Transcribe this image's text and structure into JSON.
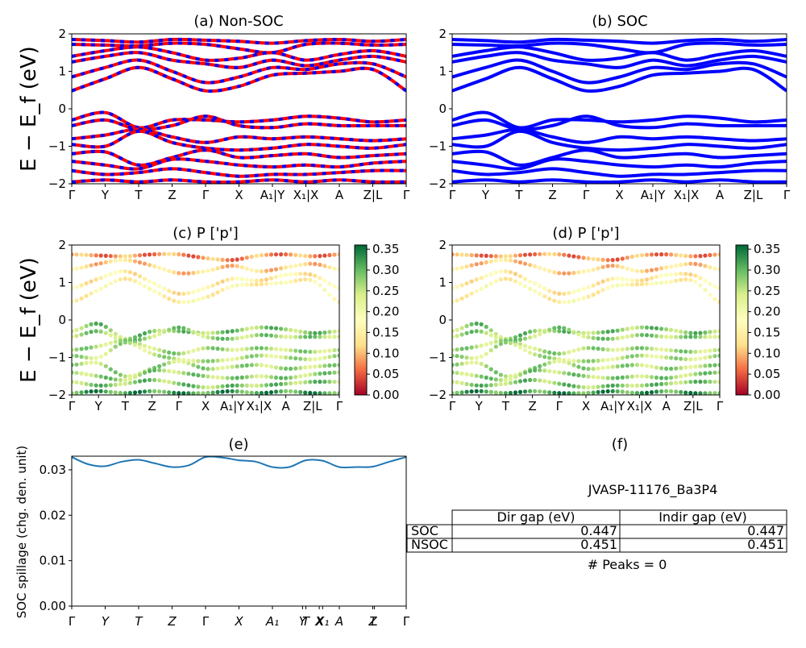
{
  "panels": {
    "a": {
      "title": "(a) Non-SOC",
      "ylabel": "E − E_f (eV)",
      "xticks": [
        "Γ",
        "Y",
        "T",
        "Z",
        "Γ",
        "X",
        "A1|Y",
        "X1|X",
        "A",
        "Z|L",
        "Γ"
      ],
      "yticks": [
        "2",
        "1",
        "0",
        "−1",
        "−2"
      ]
    },
    "b": {
      "title": "(b) SOC",
      "xticks": [
        "Γ",
        "Y",
        "T",
        "Z",
        "Γ",
        "X",
        "A1|Y",
        "X1|X",
        "A",
        "Z|L",
        "Γ"
      ],
      "yticks": [
        "2",
        "1",
        "0",
        "−1",
        "−2"
      ]
    },
    "c": {
      "title": "(c)  P ['p']",
      "ylabel": "E − E_f (eV)",
      "xticks": [
        "Γ",
        "Y",
        "T",
        "Z",
        "Γ",
        "X",
        "A1|Y",
        "X1|X",
        "A",
        "Z|L",
        "Γ"
      ],
      "yticks": [
        "2",
        "1",
        "0",
        "−1",
        "−2"
      ],
      "colorbar_ticks": [
        "0.35",
        "0.30",
        "0.25",
        "0.20",
        "0.15",
        "0.10",
        "0.05",
        "0.00"
      ]
    },
    "d": {
      "title": "(d) P ['p']",
      "xticks": [
        "Γ",
        "Y",
        "T",
        "Z",
        "Γ",
        "X",
        "A1|Y",
        "X1|X",
        "A",
        "Z|L",
        "Γ"
      ],
      "yticks": [
        "2",
        "1",
        "0",
        "−1",
        "−2"
      ],
      "colorbar_ticks": [
        "0.35",
        "0.30",
        "0.25",
        "0.20",
        "0.15",
        "0.10",
        "0.05",
        "0.00"
      ]
    },
    "e": {
      "title": "(e)",
      "ylabel": "SOC spillage (chg. den. unit)",
      "xticks": [
        "Γ",
        "Y",
        "T",
        "Z",
        "Γ",
        "X",
        "A1",
        "Y",
        "T",
        "X",
        "X1",
        "A",
        "Z",
        "L",
        "Γ"
      ],
      "yticks": [
        "0.03",
        "0.02",
        "0.01",
        "0.00"
      ]
    },
    "f": {
      "title": "(f)",
      "material": "JVASP-11176_Ba3P4",
      "table": {
        "headers": [
          "Dir gap (eV)",
          "Indir gap (eV)"
        ],
        "rows": [
          {
            "label": "SOC",
            "dir": "0.447",
            "indir": "0.447"
          },
          {
            "label": "NSOC",
            "dir": "0.451",
            "indir": "0.451"
          }
        ]
      },
      "peaks": "# Peaks = 0"
    }
  },
  "colors": {
    "nonsoc_primary": "#ff0000",
    "nonsoc_dash": "#0000ff",
    "soc": "#0000ff",
    "spillage_line": "#1f77b4",
    "colormap": [
      "#a50026",
      "#f46d43",
      "#fee08b",
      "#ffffbf",
      "#d9ef8b",
      "#66bd63",
      "#006837"
    ]
  },
  "chart_data": [
    {
      "type": "line",
      "title": "(a) Non-SOC",
      "ylabel": "E − E_f (eV)",
      "ylim": [
        -2,
        2
      ],
      "x": [
        0,
        1,
        2,
        3,
        4,
        5,
        6,
        7,
        8,
        9,
        10
      ],
      "xtick_labels": [
        "Γ",
        "Y",
        "T",
        "Z",
        "Γ",
        "X",
        "A1|Y",
        "X1|X",
        "A",
        "Z|L",
        "Γ"
      ],
      "series": [
        {
          "values": [
            1.85,
            1.82,
            1.78,
            1.85,
            1.83,
            1.8,
            1.75,
            1.82,
            1.85,
            1.8,
            1.85
          ]
        },
        {
          "values": [
            1.72,
            1.7,
            1.68,
            1.75,
            1.72,
            1.6,
            1.5,
            1.72,
            1.75,
            1.7,
            1.72
          ]
        },
        {
          "values": [
            1.4,
            1.55,
            1.65,
            1.5,
            1.3,
            1.35,
            1.5,
            1.3,
            1.45,
            1.55,
            1.4
          ]
        },
        {
          "values": [
            1.25,
            1.4,
            1.5,
            1.3,
            1.2,
            1.1,
            1.3,
            1.15,
            1.3,
            1.4,
            1.25
          ]
        },
        {
          "values": [
            0.85,
            1.1,
            1.3,
            1.0,
            0.7,
            0.85,
            1.1,
            1.05,
            1.2,
            1.2,
            0.85
          ]
        },
        {
          "values": [
            0.48,
            0.8,
            1.1,
            0.8,
            0.48,
            0.6,
            0.9,
            0.95,
            1.0,
            1.05,
            0.48
          ]
        },
        {
          "values": [
            -0.3,
            -0.1,
            -0.5,
            -0.3,
            -0.3,
            -0.35,
            -0.3,
            -0.2,
            -0.25,
            -0.35,
            -0.3
          ]
        },
        {
          "values": [
            -0.45,
            -0.3,
            -0.55,
            -0.45,
            -0.2,
            -0.45,
            -0.5,
            -0.4,
            -0.45,
            -0.45,
            -0.45
          ]
        },
        {
          "values": [
            -0.8,
            -0.7,
            -0.55,
            -0.75,
            -0.9,
            -0.75,
            -0.8,
            -0.75,
            -0.8,
            -0.85,
            -0.8
          ]
        },
        {
          "values": [
            -0.95,
            -1.0,
            -0.6,
            -0.9,
            -1.05,
            -1.1,
            -1.05,
            -0.95,
            -1.0,
            -1.05,
            -0.95
          ]
        },
        {
          "values": [
            -1.2,
            -1.15,
            -1.5,
            -1.3,
            -1.1,
            -1.3,
            -1.25,
            -1.2,
            -1.3,
            -1.25,
            -1.2
          ]
        },
        {
          "values": [
            -1.4,
            -1.5,
            -1.6,
            -1.35,
            -1.4,
            -1.5,
            -1.55,
            -1.5,
            -1.55,
            -1.45,
            -1.4
          ]
        },
        {
          "values": [
            -1.65,
            -1.75,
            -1.7,
            -1.6,
            -1.7,
            -1.8,
            -1.75,
            -1.75,
            -1.7,
            -1.65,
            -1.65
          ]
        },
        {
          "values": [
            -1.95,
            -1.9,
            -1.95,
            -1.9,
            -1.95,
            -1.95,
            -1.9,
            -1.95,
            -1.9,
            -1.95,
            -1.95
          ]
        }
      ]
    },
    {
      "type": "line",
      "title": "(b) SOC",
      "ylim": [
        -2,
        2
      ],
      "x": [
        0,
        1,
        2,
        3,
        4,
        5,
        6,
        7,
        8,
        9,
        10
      ],
      "xtick_labels": [
        "Γ",
        "Y",
        "T",
        "Z",
        "Γ",
        "X",
        "A1|Y",
        "X1|X",
        "A",
        "Z|L",
        "Γ"
      ],
      "series": [
        {
          "values": [
            1.85,
            1.82,
            1.78,
            1.85,
            1.83,
            1.8,
            1.75,
            1.82,
            1.85,
            1.8,
            1.85
          ]
        },
        {
          "values": [
            1.72,
            1.7,
            1.68,
            1.75,
            1.72,
            1.6,
            1.5,
            1.72,
            1.75,
            1.7,
            1.72
          ]
        },
        {
          "values": [
            1.4,
            1.55,
            1.65,
            1.5,
            1.3,
            1.35,
            1.5,
            1.3,
            1.45,
            1.55,
            1.4
          ]
        },
        {
          "values": [
            1.25,
            1.4,
            1.5,
            1.3,
            1.2,
            1.1,
            1.3,
            1.15,
            1.3,
            1.4,
            1.25
          ]
        },
        {
          "values": [
            0.85,
            1.1,
            1.3,
            1.0,
            0.7,
            0.85,
            1.1,
            1.05,
            1.2,
            1.2,
            0.85
          ]
        },
        {
          "values": [
            0.48,
            0.8,
            1.1,
            0.8,
            0.48,
            0.6,
            0.9,
            0.95,
            1.0,
            1.05,
            0.48
          ]
        },
        {
          "values": [
            -0.3,
            -0.1,
            -0.5,
            -0.3,
            -0.3,
            -0.35,
            -0.3,
            -0.2,
            -0.25,
            -0.35,
            -0.3
          ]
        },
        {
          "values": [
            -0.45,
            -0.3,
            -0.55,
            -0.45,
            -0.2,
            -0.45,
            -0.5,
            -0.4,
            -0.45,
            -0.45,
            -0.45
          ]
        },
        {
          "values": [
            -0.8,
            -0.7,
            -0.55,
            -0.75,
            -0.9,
            -0.75,
            -0.8,
            -0.75,
            -0.8,
            -0.85,
            -0.8
          ]
        },
        {
          "values": [
            -0.95,
            -1.0,
            -0.6,
            -0.9,
            -1.05,
            -1.1,
            -1.05,
            -0.95,
            -1.0,
            -1.05,
            -0.95
          ]
        },
        {
          "values": [
            -1.2,
            -1.15,
            -1.5,
            -1.3,
            -1.1,
            -1.3,
            -1.25,
            -1.2,
            -1.3,
            -1.25,
            -1.2
          ]
        },
        {
          "values": [
            -1.4,
            -1.5,
            -1.6,
            -1.35,
            -1.4,
            -1.5,
            -1.55,
            -1.5,
            -1.55,
            -1.45,
            -1.4
          ]
        },
        {
          "values": [
            -1.65,
            -1.75,
            -1.7,
            -1.6,
            -1.7,
            -1.8,
            -1.75,
            -1.75,
            -1.7,
            -1.65,
            -1.65
          ]
        },
        {
          "values": [
            -1.95,
            -1.9,
            -1.95,
            -1.9,
            -1.95,
            -1.95,
            -1.9,
            -1.95,
            -1.9,
            -1.95,
            -1.95
          ]
        }
      ]
    },
    {
      "type": "scatter",
      "title": "(c)  P ['p']",
      "ylabel": "E − E_f (eV)",
      "ylim": [
        -2,
        2
      ],
      "colorbar_range": [
        0,
        0.36
      ],
      "x": [
        0,
        1,
        2,
        3,
        4,
        5,
        6,
        7,
        8,
        9,
        10
      ],
      "xtick_labels": [
        "Γ",
        "Y",
        "T",
        "Z",
        "Γ",
        "X",
        "A1|Y",
        "X1|X",
        "A",
        "Z|L",
        "Γ"
      ],
      "series": [
        {
          "values": [
            1.75,
            1.72,
            1.7,
            1.75,
            1.75,
            1.65,
            1.6,
            1.72,
            1.75,
            1.7,
            1.75
          ],
          "weight": 0.08
        },
        {
          "values": [
            1.35,
            1.5,
            1.6,
            1.45,
            1.25,
            1.3,
            1.45,
            1.3,
            1.4,
            1.5,
            1.35
          ],
          "weight": 0.12
        },
        {
          "values": [
            0.85,
            1.1,
            1.3,
            1.0,
            0.7,
            0.85,
            1.1,
            1.05,
            1.2,
            1.2,
            0.85
          ],
          "weight": 0.15
        },
        {
          "values": [
            0.48,
            0.8,
            1.1,
            0.8,
            0.48,
            0.6,
            0.9,
            0.95,
            1.0,
            1.05,
            0.48
          ],
          "weight": 0.16
        },
        {
          "values": [
            -0.3,
            -0.1,
            -0.5,
            -0.3,
            -0.3,
            -0.35,
            -0.3,
            -0.2,
            -0.25,
            -0.35,
            -0.3
          ],
          "weight": 0.28
        },
        {
          "values": [
            -0.45,
            -0.3,
            -0.55,
            -0.45,
            -0.2,
            -0.45,
            -0.5,
            -0.4,
            -0.45,
            -0.45,
            -0.45
          ],
          "weight": 0.27
        },
        {
          "values": [
            -0.8,
            -0.7,
            -0.55,
            -0.75,
            -0.9,
            -0.75,
            -0.8,
            -0.75,
            -0.8,
            -0.85,
            -0.8
          ],
          "weight": 0.26
        },
        {
          "values": [
            -0.95,
            -1.0,
            -0.6,
            -0.9,
            -1.05,
            -1.1,
            -1.05,
            -0.95,
            -1.0,
            -1.05,
            -0.95
          ],
          "weight": 0.25
        },
        {
          "values": [
            -1.2,
            -1.15,
            -1.5,
            -1.3,
            -1.1,
            -1.3,
            -1.25,
            -1.2,
            -1.3,
            -1.25,
            -1.2
          ],
          "weight": 0.26
        },
        {
          "values": [
            -1.4,
            -1.5,
            -1.6,
            -1.35,
            -1.4,
            -1.5,
            -1.55,
            -1.5,
            -1.55,
            -1.45,
            -1.4
          ],
          "weight": 0.27
        },
        {
          "values": [
            -1.65,
            -1.75,
            -1.7,
            -1.6,
            -1.7,
            -1.8,
            -1.75,
            -1.75,
            -1.7,
            -1.65,
            -1.65
          ],
          "weight": 0.28
        },
        {
          "values": [
            -1.95,
            -1.9,
            -1.95,
            -1.9,
            -1.95,
            -1.95,
            -1.9,
            -1.95,
            -1.9,
            -1.95,
            -1.95
          ],
          "weight": 0.32
        }
      ]
    },
    {
      "type": "scatter",
      "title": "(d) P ['p']",
      "ylim": [
        -2,
        2
      ],
      "colorbar_range": [
        0,
        0.36
      ],
      "x": [
        0,
        1,
        2,
        3,
        4,
        5,
        6,
        7,
        8,
        9,
        10
      ],
      "xtick_labels": [
        "Γ",
        "Y",
        "T",
        "Z",
        "Γ",
        "X",
        "A1|Y",
        "X1|X",
        "A",
        "Z|L",
        "Γ"
      ],
      "series": [
        {
          "values": [
            1.75,
            1.72,
            1.7,
            1.75,
            1.75,
            1.65,
            1.6,
            1.72,
            1.75,
            1.7,
            1.75
          ],
          "weight": 0.08
        },
        {
          "values": [
            1.35,
            1.5,
            1.6,
            1.45,
            1.25,
            1.3,
            1.45,
            1.3,
            1.4,
            1.5,
            1.35
          ],
          "weight": 0.12
        },
        {
          "values": [
            0.85,
            1.1,
            1.3,
            1.0,
            0.7,
            0.85,
            1.1,
            1.05,
            1.2,
            1.2,
            0.85
          ],
          "weight": 0.15
        },
        {
          "values": [
            0.48,
            0.8,
            1.1,
            0.8,
            0.48,
            0.6,
            0.9,
            0.95,
            1.0,
            1.05,
            0.48
          ],
          "weight": 0.16
        },
        {
          "values": [
            -0.3,
            -0.1,
            -0.5,
            -0.3,
            -0.3,
            -0.35,
            -0.3,
            -0.2,
            -0.25,
            -0.35,
            -0.3
          ],
          "weight": 0.28
        },
        {
          "values": [
            -0.45,
            -0.3,
            -0.55,
            -0.45,
            -0.2,
            -0.45,
            -0.5,
            -0.4,
            -0.45,
            -0.45,
            -0.45
          ],
          "weight": 0.27
        },
        {
          "values": [
            -0.8,
            -0.7,
            -0.55,
            -0.75,
            -0.9,
            -0.75,
            -0.8,
            -0.75,
            -0.8,
            -0.85,
            -0.8
          ],
          "weight": 0.26
        },
        {
          "values": [
            -0.95,
            -1.0,
            -0.6,
            -0.9,
            -1.05,
            -1.1,
            -1.05,
            -0.95,
            -1.0,
            -1.05,
            -0.95
          ],
          "weight": 0.25
        },
        {
          "values": [
            -1.2,
            -1.15,
            -1.5,
            -1.3,
            -1.1,
            -1.3,
            -1.25,
            -1.2,
            -1.3,
            -1.25,
            -1.2
          ],
          "weight": 0.26
        },
        {
          "values": [
            -1.4,
            -1.5,
            -1.6,
            -1.35,
            -1.4,
            -1.5,
            -1.55,
            -1.5,
            -1.55,
            -1.45,
            -1.4
          ],
          "weight": 0.27
        },
        {
          "values": [
            -1.65,
            -1.75,
            -1.7,
            -1.6,
            -1.7,
            -1.8,
            -1.75,
            -1.75,
            -1.7,
            -1.65,
            -1.65
          ],
          "weight": 0.28
        },
        {
          "values": [
            -1.95,
            -1.9,
            -1.95,
            -1.9,
            -1.95,
            -1.95,
            -1.9,
            -1.95,
            -1.9,
            -1.95,
            -1.95
          ],
          "weight": 0.32
        }
      ]
    },
    {
      "type": "line",
      "title": "(e)",
      "ylabel": "SOC spillage (chg. den. unit)",
      "ylim": [
        0,
        0.033
      ],
      "x": [
        0,
        0.5,
        1,
        1.5,
        2,
        2.5,
        3,
        3.5,
        4,
        4.5,
        5,
        5.5,
        6,
        6.5,
        7,
        7.5,
        8,
        8.5,
        9,
        9.5,
        10
      ],
      "series": [
        {
          "values": [
            0.0328,
            0.0312,
            0.0308,
            0.0318,
            0.0322,
            0.0314,
            0.0306,
            0.031,
            0.0328,
            0.0327,
            0.0321,
            0.0318,
            0.0306,
            0.0306,
            0.0321,
            0.032,
            0.0306,
            0.0306,
            0.0307,
            0.0318,
            0.0328
          ]
        }
      ]
    }
  ]
}
